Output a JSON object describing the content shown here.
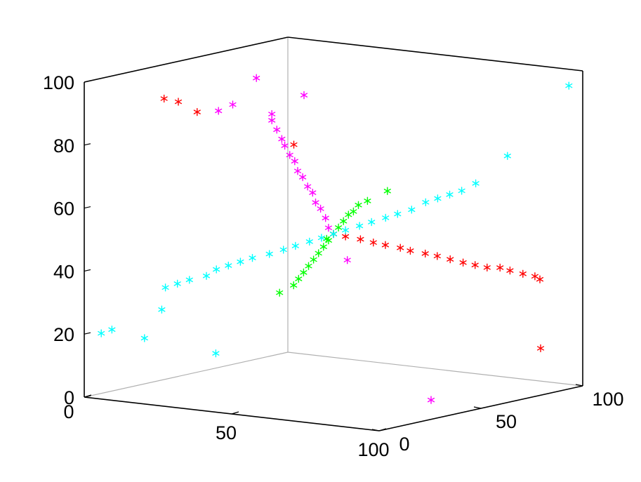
{
  "chart_data": {
    "type": "scatter",
    "projection": "3d",
    "xlim": [
      0,
      100
    ],
    "ylim": [
      0,
      100
    ],
    "zlim": [
      0,
      100
    ],
    "x_ticks": [
      "0",
      "50",
      "100"
    ],
    "y_ticks": [
      "0",
      "50",
      "100"
    ],
    "z_ticks": [
      "0",
      "20",
      "40",
      "60",
      "80",
      "100"
    ],
    "grid": false,
    "marker": "asterisk",
    "series": [
      {
        "color": "#ff0000",
        "points": [
          [
            50,
            50,
            50
          ],
          [
            52,
            53,
            49
          ],
          [
            55,
            56,
            48
          ],
          [
            58,
            58,
            47
          ],
          [
            60,
            61,
            46
          ],
          [
            63,
            64,
            45
          ],
          [
            65,
            66,
            44
          ],
          [
            68,
            69,
            43
          ],
          [
            70,
            72,
            42
          ],
          [
            73,
            74,
            41
          ],
          [
            76,
            76,
            40
          ],
          [
            78,
            79,
            39
          ],
          [
            80,
            82,
            38
          ],
          [
            83,
            84,
            38
          ],
          [
            85,
            86,
            37
          ],
          [
            88,
            88,
            36
          ],
          [
            90,
            91,
            35
          ],
          [
            91,
            92,
            34
          ],
          [
            25,
            3,
            97
          ],
          [
            25,
            10,
            95
          ],
          [
            30,
            12,
            92
          ],
          [
            40,
            45,
            78
          ],
          [
            94,
            88,
            13
          ]
        ]
      },
      {
        "color": "#ff00ff",
        "points": [
          [
            50,
            50,
            50
          ],
          [
            49,
            49,
            52
          ],
          [
            48,
            49,
            55
          ],
          [
            47,
            48,
            58
          ],
          [
            46,
            47,
            60
          ],
          [
            45,
            47,
            63
          ],
          [
            44,
            46,
            65
          ],
          [
            43,
            45,
            68
          ],
          [
            42,
            44,
            70
          ],
          [
            41,
            44,
            73
          ],
          [
            40,
            43,
            75
          ],
          [
            39,
            42,
            78
          ],
          [
            38,
            42,
            80
          ],
          [
            37,
            41,
            83
          ],
          [
            36,
            40,
            86
          ],
          [
            36,
            40,
            88
          ],
          [
            40,
            8,
            94
          ],
          [
            40,
            15,
            95
          ],
          [
            28,
            44,
            98
          ],
          [
            40,
            50,
            93
          ],
          [
            54,
            51,
            42
          ],
          [
            90,
            40,
            3
          ]
        ]
      },
      {
        "color": "#00ff00",
        "points": [
          [
            50,
            50,
            50
          ],
          [
            51,
            51,
            52
          ],
          [
            52,
            52,
            54
          ],
          [
            53,
            53,
            56
          ],
          [
            54,
            54,
            57
          ],
          [
            55,
            55,
            59
          ],
          [
            49,
            49,
            48
          ],
          [
            48,
            48,
            46
          ],
          [
            47,
            47,
            44
          ],
          [
            46,
            46,
            42
          ],
          [
            45,
            45,
            40
          ],
          [
            44,
            44,
            38
          ],
          [
            43,
            43,
            36
          ],
          [
            42,
            42,
            34
          ],
          [
            56,
            58,
            60
          ],
          [
            47,
            51,
            48
          ],
          [
            40,
            38,
            32
          ],
          [
            60,
            62,
            63
          ]
        ]
      },
      {
        "color": "#00ffff",
        "points": [
          [
            50,
            50,
            50
          ],
          [
            48,
            47,
            49
          ],
          [
            46,
            44,
            48
          ],
          [
            44,
            40,
            47
          ],
          [
            42,
            37,
            46
          ],
          [
            40,
            33,
            45
          ],
          [
            37,
            29,
            44
          ],
          [
            35,
            26,
            43
          ],
          [
            33,
            23,
            42
          ],
          [
            31,
            20,
            41
          ],
          [
            29,
            18,
            39
          ],
          [
            26,
            14,
            38
          ],
          [
            24,
            11,
            37
          ],
          [
            22,
            8,
            36
          ],
          [
            52,
            53,
            51
          ],
          [
            54,
            57,
            52
          ],
          [
            56,
            60,
            53
          ],
          [
            58,
            64,
            54
          ],
          [
            60,
            67,
            55
          ],
          [
            62,
            71,
            56
          ],
          [
            64,
            75,
            58
          ],
          [
            66,
            78,
            59
          ],
          [
            68,
            81,
            60
          ],
          [
            70,
            84,
            61
          ],
          [
            3,
            4,
            20
          ],
          [
            8,
            2,
            22
          ],
          [
            8,
            18,
            17
          ],
          [
            18,
            12,
            28
          ],
          [
            17,
            40,
            10
          ],
          [
            72,
            88,
            63
          ],
          [
            80,
            92,
            72
          ],
          [
            96,
            99,
            95
          ]
        ]
      }
    ]
  }
}
